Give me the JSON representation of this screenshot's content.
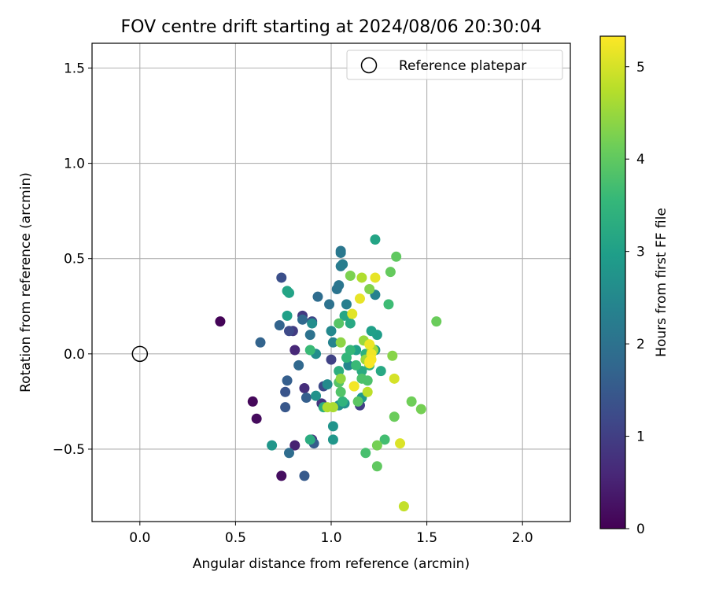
{
  "chart_data": {
    "type": "scatter",
    "title": "FOV centre drift starting at 2024/08/06 20:30:04",
    "xlabel": "Angular distance from reference (arcmin)",
    "ylabel": "Rotation from reference (arcmin)",
    "xlim": [
      -0.25,
      2.25
    ],
    "ylim": [
      -0.88,
      1.63
    ],
    "x_ticks": [
      "0.0",
      "0.5",
      "1.0",
      "1.5",
      "2.0"
    ],
    "x_tick_values": [
      0,
      0.5,
      1.0,
      1.5,
      2.0
    ],
    "y_ticks": [
      "−0.5",
      "0.0",
      "0.5",
      "1.0",
      "1.5"
    ],
    "y_tick_values": [
      -0.5,
      0,
      0.5,
      1.0,
      1.5
    ],
    "grid": true,
    "legend": {
      "placement": "top-right",
      "entries": [
        "Reference platepar"
      ]
    },
    "reference_point": {
      "x": 0.0,
      "y": 0.0,
      "marker": "hollow-circle",
      "color": "#000000"
    },
    "colorbar": {
      "label": "Hours from first FF file",
      "range": [
        0,
        5.33
      ],
      "ticks": [
        "0",
        "1",
        "2",
        "3",
        "4",
        "5"
      ],
      "tick_values": [
        0,
        1,
        2,
        3,
        4,
        5
      ],
      "colormap": "viridis",
      "stops": [
        "#440154",
        "#482878",
        "#3e4989",
        "#31688e",
        "#26828e",
        "#1f9e89",
        "#35b779",
        "#6ece58",
        "#b5de2b",
        "#fde725"
      ]
    },
    "points": [
      {
        "x": 0.42,
        "y": 0.17,
        "c": 0.05
      },
      {
        "x": 0.59,
        "y": -0.25,
        "c": 0.1
      },
      {
        "x": 0.61,
        "y": -0.34,
        "c": 0.15
      },
      {
        "x": 0.74,
        "y": -0.64,
        "c": 0.2
      },
      {
        "x": 0.81,
        "y": -0.48,
        "c": 0.5
      },
      {
        "x": 0.81,
        "y": 0.02,
        "c": 0.6
      },
      {
        "x": 0.86,
        "y": -0.18,
        "c": 0.7
      },
      {
        "x": 0.9,
        "y": -0.45,
        "c": 0.8
      },
      {
        "x": 0.95,
        "y": -0.26,
        "c": 0.85
      },
      {
        "x": 0.85,
        "y": 0.2,
        "c": 0.9
      },
      {
        "x": 0.8,
        "y": 0.12,
        "c": 0.95
      },
      {
        "x": 1.15,
        "y": -0.27,
        "c": 1.0
      },
      {
        "x": 1.0,
        "y": -0.03,
        "c": 1.05
      },
      {
        "x": 0.9,
        "y": 0.17,
        "c": 1.1
      },
      {
        "x": 0.96,
        "y": -0.17,
        "c": 1.2
      },
      {
        "x": 0.78,
        "y": 0.12,
        "c": 1.2
      },
      {
        "x": 0.74,
        "y": 0.4,
        "c": 1.3
      },
      {
        "x": 0.76,
        "y": -0.2,
        "c": 1.4
      },
      {
        "x": 0.76,
        "y": -0.28,
        "c": 1.45
      },
      {
        "x": 0.86,
        "y": -0.64,
        "c": 1.5
      },
      {
        "x": 0.91,
        "y": -0.47,
        "c": 1.55
      },
      {
        "x": 0.87,
        "y": -0.23,
        "c": 1.6
      },
      {
        "x": 0.77,
        "y": -0.14,
        "c": 1.6
      },
      {
        "x": 0.63,
        "y": 0.06,
        "c": 1.7
      },
      {
        "x": 0.73,
        "y": 0.15,
        "c": 1.7
      },
      {
        "x": 0.85,
        "y": 0.18,
        "c": 1.8
      },
      {
        "x": 0.83,
        "y": -0.06,
        "c": 1.8
      },
      {
        "x": 0.78,
        "y": -0.52,
        "c": 1.9
      },
      {
        "x": 0.93,
        "y": 0.3,
        "c": 1.9
      },
      {
        "x": 0.89,
        "y": 0.1,
        "c": 2.0
      },
      {
        "x": 0.99,
        "y": 0.26,
        "c": 2.0
      },
      {
        "x": 1.03,
        "y": 0.34,
        "c": 2.05
      },
      {
        "x": 1.04,
        "y": 0.36,
        "c": 2.1
      },
      {
        "x": 1.05,
        "y": 0.54,
        "c": 2.1
      },
      {
        "x": 1.05,
        "y": 0.53,
        "c": 2.15
      },
      {
        "x": 1.05,
        "y": 0.46,
        "c": 2.2
      },
      {
        "x": 1.06,
        "y": 0.47,
        "c": 2.25
      },
      {
        "x": 1.08,
        "y": 0.26,
        "c": 2.3
      },
      {
        "x": 1.23,
        "y": 0.31,
        "c": 2.35
      },
      {
        "x": 1.01,
        "y": 0.06,
        "c": 2.4
      },
      {
        "x": 1.09,
        "y": -0.06,
        "c": 2.45
      },
      {
        "x": 1.0,
        "y": 0.12,
        "c": 2.5
      },
      {
        "x": 0.98,
        "y": -0.16,
        "c": 2.55
      },
      {
        "x": 0.92,
        "y": 0.0,
        "c": 2.6
      },
      {
        "x": 0.9,
        "y": 0.16,
        "c": 2.6
      },
      {
        "x": 1.04,
        "y": -0.27,
        "c": 2.65
      },
      {
        "x": 1.07,
        "y": -0.26,
        "c": 2.7
      },
      {
        "x": 0.92,
        "y": -0.22,
        "c": 2.7
      },
      {
        "x": 1.01,
        "y": -0.38,
        "c": 2.75
      },
      {
        "x": 1.01,
        "y": -0.45,
        "c": 2.8
      },
      {
        "x": 0.69,
        "y": -0.48,
        "c": 2.8
      },
      {
        "x": 1.16,
        "y": -0.23,
        "c": 2.85
      },
      {
        "x": 1.23,
        "y": 0.02,
        "c": 2.9
      },
      {
        "x": 1.24,
        "y": 0.1,
        "c": 2.95
      },
      {
        "x": 1.21,
        "y": 0.12,
        "c": 3.0
      },
      {
        "x": 1.13,
        "y": 0.02,
        "c": 3.0
      },
      {
        "x": 0.77,
        "y": 0.2,
        "c": 3.0
      },
      {
        "x": 0.78,
        "y": 0.32,
        "c": 3.05
      },
      {
        "x": 0.77,
        "y": 0.33,
        "c": 3.1
      },
      {
        "x": 1.23,
        "y": 0.6,
        "c": 3.1
      },
      {
        "x": 1.07,
        "y": 0.2,
        "c": 3.15
      },
      {
        "x": 1.1,
        "y": 0.16,
        "c": 3.2
      },
      {
        "x": 1.26,
        "y": -0.09,
        "c": 3.2
      },
      {
        "x": 1.16,
        "y": -0.09,
        "c": 3.25
      },
      {
        "x": 0.89,
        "y": -0.45,
        "c": 3.3
      },
      {
        "x": 0.96,
        "y": -0.28,
        "c": 3.3
      },
      {
        "x": 1.04,
        "y": -0.09,
        "c": 3.35
      },
      {
        "x": 1.18,
        "y": 0.0,
        "c": 3.4
      },
      {
        "x": 1.2,
        "y": -0.06,
        "c": 3.4
      },
      {
        "x": 1.06,
        "y": -0.25,
        "c": 3.45
      },
      {
        "x": 1.08,
        "y": -0.02,
        "c": 3.5
      },
      {
        "x": 1.1,
        "y": 0.02,
        "c": 3.55
      },
      {
        "x": 1.13,
        "y": -0.06,
        "c": 3.6
      },
      {
        "x": 0.89,
        "y": 0.02,
        "c": 3.6
      },
      {
        "x": 1.3,
        "y": 0.26,
        "c": 3.65
      },
      {
        "x": 1.28,
        "y": -0.45,
        "c": 3.7
      },
      {
        "x": 1.18,
        "y": -0.52,
        "c": 3.75
      },
      {
        "x": 1.16,
        "y": -0.13,
        "c": 3.8
      },
      {
        "x": 1.19,
        "y": -0.14,
        "c": 3.8
      },
      {
        "x": 1.05,
        "y": -0.2,
        "c": 3.85
      },
      {
        "x": 1.04,
        "y": -0.15,
        "c": 3.9
      },
      {
        "x": 1.04,
        "y": 0.16,
        "c": 3.9
      },
      {
        "x": 1.14,
        "y": -0.25,
        "c": 3.95
      },
      {
        "x": 1.24,
        "y": -0.59,
        "c": 4.0
      },
      {
        "x": 1.34,
        "y": 0.51,
        "c": 4.0
      },
      {
        "x": 1.31,
        "y": 0.43,
        "c": 4.05
      },
      {
        "x": 1.55,
        "y": 0.17,
        "c": 4.1
      },
      {
        "x": 1.33,
        "y": -0.33,
        "c": 4.1
      },
      {
        "x": 1.42,
        "y": -0.25,
        "c": 4.15
      },
      {
        "x": 1.47,
        "y": -0.29,
        "c": 4.2
      },
      {
        "x": 1.24,
        "y": -0.48,
        "c": 4.2
      },
      {
        "x": 1.1,
        "y": 0.41,
        "c": 4.25
      },
      {
        "x": 1.2,
        "y": 0.34,
        "c": 4.3
      },
      {
        "x": 1.32,
        "y": -0.01,
        "c": 4.35
      },
      {
        "x": 1.05,
        "y": 0.06,
        "c": 4.4
      },
      {
        "x": 1.05,
        "y": -0.13,
        "c": 4.45
      },
      {
        "x": 1.17,
        "y": 0.07,
        "c": 4.5
      },
      {
        "x": 1.18,
        "y": -0.03,
        "c": 4.5
      },
      {
        "x": 1.19,
        "y": -0.03,
        "c": 4.55
      },
      {
        "x": 1.21,
        "y": 0.03,
        "c": 4.6
      },
      {
        "x": 1.22,
        "y": 0.02,
        "c": 4.6
      },
      {
        "x": 1.01,
        "y": -0.28,
        "c": 4.65
      },
      {
        "x": 0.98,
        "y": -0.28,
        "c": 4.7
      },
      {
        "x": 1.16,
        "y": 0.4,
        "c": 4.7
      },
      {
        "x": 1.12,
        "y": -0.17,
        "c": 4.75
      },
      {
        "x": 1.19,
        "y": -0.2,
        "c": 4.8
      },
      {
        "x": 1.38,
        "y": -0.8,
        "c": 4.85
      },
      {
        "x": 1.33,
        "y": -0.13,
        "c": 5.0
      },
      {
        "x": 1.36,
        "y": -0.47,
        "c": 5.05
      },
      {
        "x": 1.11,
        "y": 0.21,
        "c": 5.1
      },
      {
        "x": 1.15,
        "y": 0.29,
        "c": 5.15
      },
      {
        "x": 1.23,
        "y": 0.4,
        "c": 5.15
      },
      {
        "x": 1.2,
        "y": 0.05,
        "c": 5.2
      },
      {
        "x": 1.21,
        "y": 0.0,
        "c": 5.22
      },
      {
        "x": 1.2,
        "y": -0.04,
        "c": 5.25
      },
      {
        "x": 1.12,
        "y": -0.17,
        "c": 5.25
      },
      {
        "x": 1.21,
        "y": -0.03,
        "c": 5.28
      },
      {
        "x": 1.2,
        "y": -0.05,
        "c": 5.3
      }
    ]
  }
}
